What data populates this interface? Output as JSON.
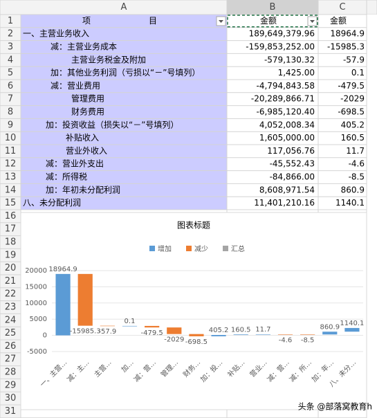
{
  "spreadsheet": {
    "column_headers": [
      "A",
      "B",
      "C"
    ],
    "row_numbers": [
      1,
      2,
      3,
      4,
      5,
      6,
      7,
      8,
      9,
      10,
      11,
      12,
      13,
      14,
      15,
      16,
      17,
      18,
      19,
      20,
      21,
      22,
      23,
      24,
      25,
      26,
      27,
      28,
      29,
      30,
      31
    ],
    "header_row": [
      "项　　　　　　　目",
      "金额",
      "金额"
    ],
    "rows": [
      [
        "一、主营业务收入",
        "189,649,379.96",
        "18964.9"
      ],
      [
        "减：主营业务成本",
        "-159,853,252.00",
        "-15985.3"
      ],
      [
        "主营业务税金及附加",
        "-579,130.32",
        "-57.9"
      ],
      [
        "加：其他业务利润（亏损以“－”号填列）",
        "1,425.00",
        "0.1"
      ],
      [
        "减：营业费用",
        "-4,794,843.58",
        "-479.5"
      ],
      [
        "管理费用",
        "-20,289,866.71",
        "-2029"
      ],
      [
        "财务费用",
        "-6,985,120.40",
        "-698.5"
      ],
      [
        "加：投资收益（损失以“－”号填列）",
        "4,052,008.34",
        "405.2"
      ],
      [
        "补贴收入",
        "1,605,000.00",
        "160.5"
      ],
      [
        "营业外收入",
        "117,056.76",
        "11.7"
      ],
      [
        "减：营业外支出",
        "-45,552.43",
        "-4.6"
      ],
      [
        "减：所得税",
        "-84,866.00",
        "-8.5"
      ],
      [
        "加：年初未分配利润",
        "8,608,971.54",
        "860.9"
      ],
      [
        "八、未分配利润",
        "11,401,210.16",
        "1140.1"
      ]
    ]
  },
  "chart_data": {
    "type": "waterfall",
    "title": "图表标题",
    "categories": [
      "一、主营…",
      "减：主…",
      "主营…",
      "加…",
      "减：营…",
      "管理…",
      "财务…",
      "加：投…",
      "补贴…",
      "营业…",
      "减：营…",
      "减：所…",
      "加：年…",
      "八、未分…"
    ],
    "values": [
      18964.9,
      -15985.3,
      -57.9,
      0.1,
      -479.5,
      -2029,
      -698.5,
      405.2,
      160.5,
      11.7,
      -4.6,
      -8.5,
      860.9,
      1140.1
    ],
    "legend": [
      {
        "name": "增加",
        "color": "#5b9bd5"
      },
      {
        "name": "减少",
        "color": "#ed7d31"
      },
      {
        "name": "汇总",
        "color": "#a5a5a5"
      }
    ],
    "ylim": [
      -5000,
      20000
    ],
    "yticks": [
      -5000,
      0,
      5000,
      10000,
      15000,
      20000
    ],
    "grid": true
  },
  "watermark": "头条 @部落窝教育h"
}
